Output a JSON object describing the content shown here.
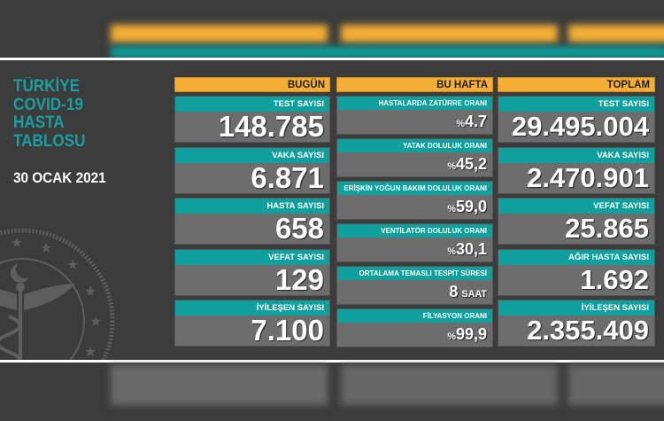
{
  "title_lines": [
    "TÜRKİYE",
    "COVID-19",
    "HASTA",
    "TABLOSU"
  ],
  "date": "30 OCAK 2021",
  "colors": {
    "accent_teal": "#0fa09e",
    "header_orange": "#f4ae35",
    "card_gray": "#6d6d6d",
    "background": "#3c3c3c"
  },
  "emblem_icon": "ministry-of-health-emblem",
  "today": {
    "header": "BUGÜN",
    "items": [
      {
        "label": "TEST SAYISI",
        "value": "148.785"
      },
      {
        "label": "VAKA SAYISI",
        "value": "6.871"
      },
      {
        "label": "HASTA SAYISI",
        "value": "658"
      },
      {
        "label": "VEFAT SAYISI",
        "value": "129"
      },
      {
        "label": "İYİLEŞEN SAYISI",
        "value": "7.100"
      }
    ]
  },
  "week": {
    "header": "BU HAFTA",
    "items": [
      {
        "label": "HASTALARDA ZATÜRRE ORANI",
        "prefix": "%",
        "value": "4.7"
      },
      {
        "label": "YATAK DOLULUK ORANI",
        "prefix": "%",
        "value": "45,2"
      },
      {
        "label": "ERİŞKİN YOĞUN BAKIM DOLULUK ORANI",
        "prefix": "%",
        "value": "59,0"
      },
      {
        "label": "VENTİLATÖR DOLULUK ORANI",
        "prefix": "%",
        "value": "30,1"
      },
      {
        "label": "ORTALAMA TEMASLI TESPİT SÜRESİ",
        "value": "8",
        "suffix": "SAAT"
      },
      {
        "label": "FİLYASYON ORANI",
        "prefix": "%",
        "value": "99,9"
      }
    ]
  },
  "total": {
    "header": "TOPLAM",
    "items": [
      {
        "label": "TEST SAYISI",
        "value": "29.495.004"
      },
      {
        "label": "VAKA SAYISI",
        "value": "2.470.901"
      },
      {
        "label": "VEFAT SAYISI",
        "value": "25.865"
      },
      {
        "label": "AĞIR HASTA SAYISI",
        "value": "1.692"
      },
      {
        "label": "İYİLEŞEN SAYISI",
        "value": "2.355.409"
      }
    ]
  }
}
